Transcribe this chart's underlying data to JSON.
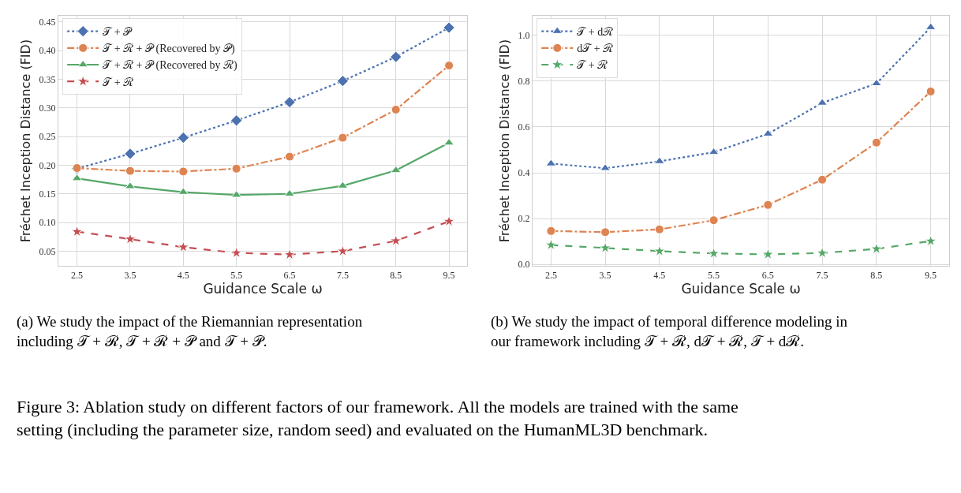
{
  "chart_data": [
    {
      "type": "line",
      "xlabel": "Guidance Scale ω",
      "ylabel": "Fréchet Inception Distance (FID)",
      "x": [
        2.5,
        3.5,
        4.5,
        5.5,
        6.5,
        7.5,
        8.5,
        9.5
      ],
      "xlim": [
        2.15,
        9.84
      ],
      "xticks": [
        2.5,
        3.5,
        4.5,
        5.5,
        6.5,
        7.5,
        8.5,
        9.5
      ],
      "ylim": [
        0.024,
        0.461
      ],
      "yticks": [
        {
          "value": 0.05,
          "label": "0.05"
        },
        {
          "value": 0.1,
          "label": "0.10"
        },
        {
          "value": 0.15,
          "label": "0.15"
        },
        {
          "value": 0.2,
          "label": "0.20"
        },
        {
          "value": 0.25,
          "label": "0.25"
        },
        {
          "value": 0.3,
          "label": "0.30"
        },
        {
          "value": 0.35,
          "label": "0.35"
        },
        {
          "value": 0.4,
          "label": "0.40"
        },
        {
          "value": 0.45,
          "label": "0.45"
        }
      ],
      "grid": true,
      "legend": "top left",
      "series": [
        {
          "name": "𝒯 + 𝒫",
          "color": "#4c72b0",
          "marker": "diamond",
          "line_style": "dotted",
          "values": [
            0.194,
            0.22,
            0.248,
            0.278,
            0.31,
            0.347,
            0.389,
            0.44
          ]
        },
        {
          "name": "𝒯 + ℛ + 𝒫 (Recovered by 𝒫)",
          "color": "#dd8452",
          "marker": "circle",
          "line_style": "dashdot",
          "values": [
            0.195,
            0.19,
            0.189,
            0.194,
            0.215,
            0.248,
            0.297,
            0.374
          ]
        },
        {
          "name": "𝒯 + ℛ + 𝒫 (Recovered by ℛ)",
          "color": "#55a868",
          "marker": "triangle",
          "line_style": "solid",
          "values": [
            0.177,
            0.163,
            0.153,
            0.148,
            0.15,
            0.164,
            0.191,
            0.239
          ]
        },
        {
          "name": "𝒯 + ℛ",
          "color": "#c44e52",
          "marker": "star",
          "line_style": "dashed",
          "values": [
            0.084,
            0.071,
            0.057,
            0.047,
            0.044,
            0.05,
            0.068,
            0.102
          ]
        }
      ],
      "annotations": [
        "(a) We study the impact of the Riemannian representation including 𝒯 + ℛ, 𝒯 + ℛ + 𝒫 and 𝒯 + 𝒫."
      ]
    },
    {
      "type": "line",
      "xlabel": "Guidance Scale ω",
      "ylabel": "Fréchet Inception Distance (FID)",
      "x": [
        2.5,
        3.5,
        4.5,
        5.5,
        6.5,
        7.5,
        8.5,
        9.5
      ],
      "xlim": [
        2.16,
        9.84
      ],
      "xticks": [
        2.5,
        3.5,
        4.5,
        5.5,
        6.5,
        7.5,
        8.5,
        9.5
      ],
      "ylim": [
        -0.007,
        1.086
      ],
      "yticks": [
        {
          "value": 0,
          "label": "0.0"
        },
        {
          "value": 0.2,
          "label": "0.2"
        },
        {
          "value": 0.4,
          "label": "0.4"
        },
        {
          "value": 0.6,
          "label": "0.6"
        },
        {
          "value": 0.8,
          "label": "0.8"
        },
        {
          "value": 1,
          "label": "1.0"
        }
      ],
      "grid": true,
      "legend": "top left",
      "series": [
        {
          "name": "𝒯 + dℛ",
          "color": "#4c72b0",
          "marker": "triangle",
          "line_style": "dotted",
          "values": [
            0.44,
            0.42,
            0.45,
            0.49,
            0.57,
            0.705,
            0.79,
            1.035
          ]
        },
        {
          "name": "d𝒯 + ℛ",
          "color": "#dd8452",
          "marker": "circle",
          "line_style": "dashdot",
          "values": [
            0.146,
            0.141,
            0.153,
            0.193,
            0.26,
            0.37,
            0.532,
            0.755
          ]
        },
        {
          "name": "𝒯 + ℛ",
          "color": "#55a868",
          "marker": "star",
          "line_style": "dashed",
          "values": [
            0.085,
            0.072,
            0.058,
            0.048,
            0.044,
            0.05,
            0.068,
            0.102
          ]
        }
      ],
      "annotations": [
        "(b) We study the impact of temporal difference modeling in our framework including 𝒯 + ℛ, d𝒯 + ℛ, 𝒯 + dℛ.",
        "Figure 3: Ablation study on different factors of our framework. All the models are trained with the same setting (including the parameter size, random seed) and evaluated on the HumanML3D benchmark."
      ]
    }
  ]
}
